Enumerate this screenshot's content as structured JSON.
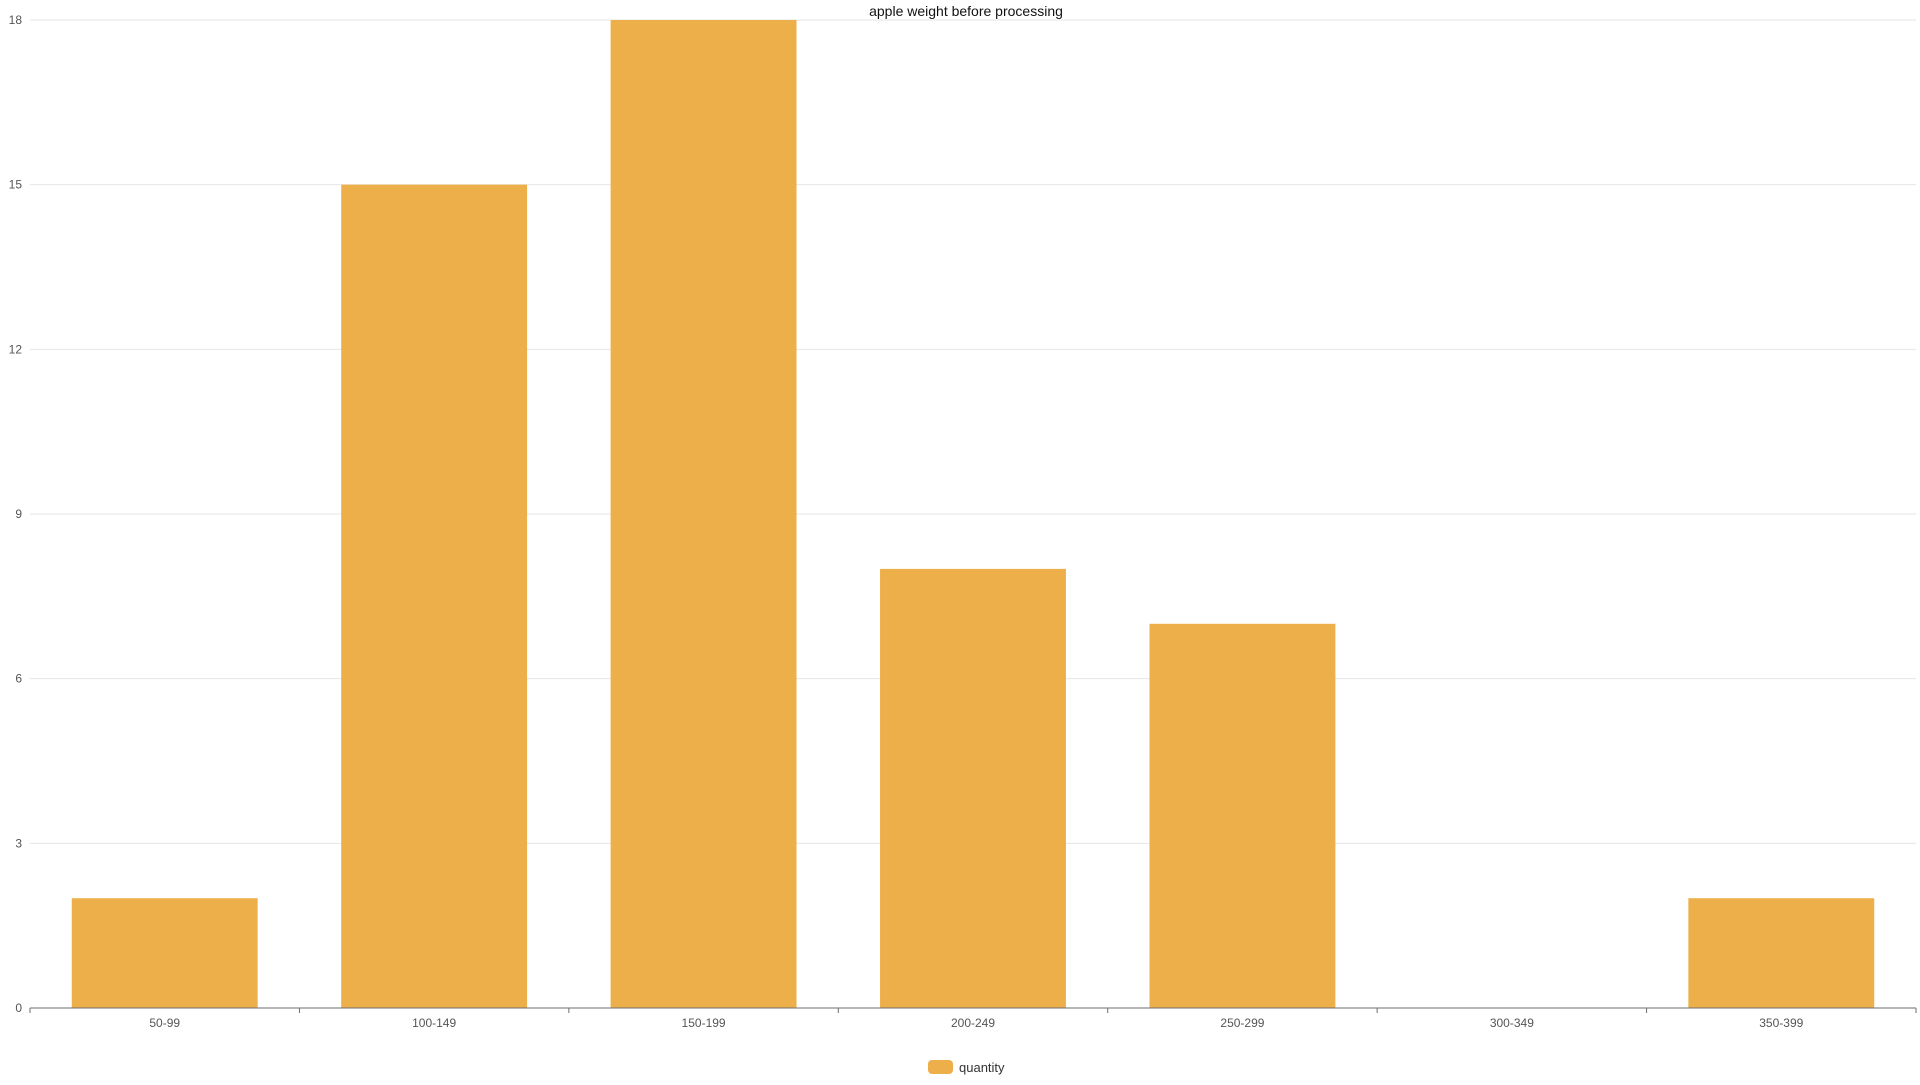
{
  "chart_data": {
    "type": "bar",
    "title": "apple weight before processing",
    "categories": [
      "50-99",
      "100-149",
      "150-199",
      "200-249",
      "250-299",
      "300-349",
      "350-399"
    ],
    "series": [
      {
        "name": "quantity",
        "values": [
          2,
          15,
          18,
          8,
          7,
          0,
          2
        ],
        "color": "#edaf4a"
      }
    ],
    "ylim": [
      0,
      18
    ],
    "yticks": [
      0,
      3,
      6,
      9,
      12,
      15,
      18
    ],
    "xlabel": "",
    "ylabel": "",
    "grid": true,
    "legend_position": "bottom-center"
  }
}
